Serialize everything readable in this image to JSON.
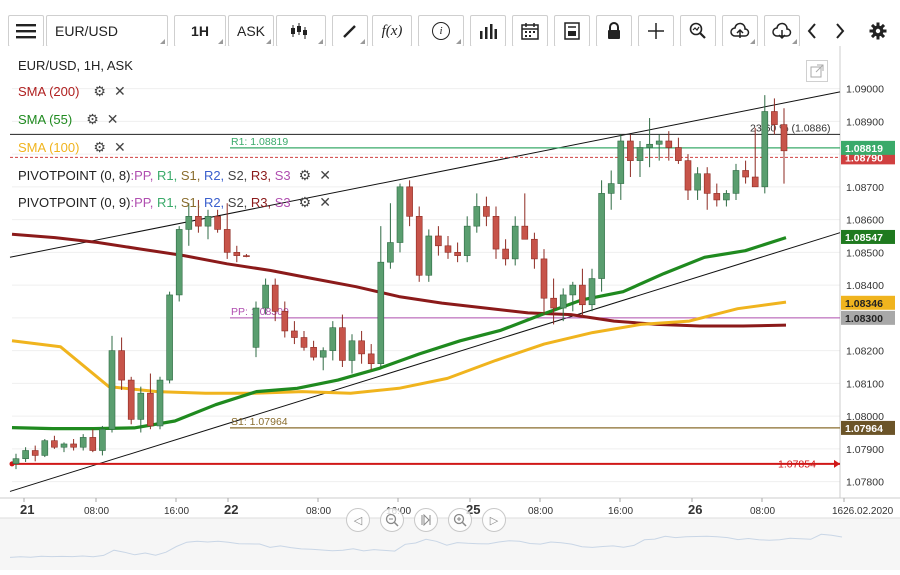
{
  "toolbar": {
    "symbol": "EUR/USD",
    "timeframe": "1H",
    "price_type": "ASK",
    "fx_label": "f(x)",
    "info_label": "i"
  },
  "legend": {
    "title": "EUR/USD, 1H, ASK",
    "sma200": "SMA (200)",
    "sma55": "SMA (55)",
    "sma100": "SMA (100)",
    "pivot1_name": "PIVOTPOINT (0, 8)",
    "pivot2_name": "PIVOTPOINT (0, 9)",
    "pivot_sep": ":",
    "pivot_items": [
      "PP,",
      "R1,",
      "S1,",
      "R2,",
      "S2,",
      "R3,",
      "S3"
    ]
  },
  "colors": {
    "up": "#5a9e6f",
    "down": "#c7544a",
    "sma200": "#8b1a1a",
    "sma55": "#1f8a1f",
    "sma100": "#f0b41e",
    "r1": "#3aaa6a",
    "s1": "#8a6d2e",
    "pp": "#b04fb0",
    "hline": "#d01818"
  },
  "chart_data": {
    "type": "candlestick",
    "title": "EUR/USD, 1H, ASK",
    "ylim": [
      1.0775,
      1.0913
    ],
    "y_ticks": [
      "1.07800",
      "1.07900",
      "1.08000",
      "1.08100",
      "1.08200",
      "1.08300",
      "1.08400",
      "1.08500",
      "1.08600",
      "1.08700",
      "1.08800",
      "1.08900",
      "1.09000"
    ],
    "x_ticks": [
      "21",
      "08:00",
      "16:00",
      "22",
      "08:00",
      "16:00",
      "25",
      "08:00",
      "16:00",
      "26",
      "08:00",
      "1626.02.2020"
    ],
    "ohlc": [
      {
        "o": 1.07855,
        "h": 1.07885,
        "l": 1.07838,
        "c": 1.0787
      },
      {
        "o": 1.0787,
        "h": 1.07905,
        "l": 1.0786,
        "c": 1.07895
      },
      {
        "o": 1.07895,
        "h": 1.0791,
        "l": 1.07862,
        "c": 1.0788
      },
      {
        "o": 1.0788,
        "h": 1.0793,
        "l": 1.07875,
        "c": 1.07925
      },
      {
        "o": 1.07925,
        "h": 1.0794,
        "l": 1.079,
        "c": 1.07905
      },
      {
        "o": 1.07905,
        "h": 1.0792,
        "l": 1.0789,
        "c": 1.07915
      },
      {
        "o": 1.07915,
        "h": 1.0793,
        "l": 1.07895,
        "c": 1.07905
      },
      {
        "o": 1.07905,
        "h": 1.07945,
        "l": 1.07895,
        "c": 1.07935
      },
      {
        "o": 1.07935,
        "h": 1.0796,
        "l": 1.0789,
        "c": 1.07895
      },
      {
        "o": 1.07895,
        "h": 1.0797,
        "l": 1.0788,
        "c": 1.0796
      },
      {
        "o": 1.0796,
        "h": 1.08245,
        "l": 1.0795,
        "c": 1.082
      },
      {
        "o": 1.082,
        "h": 1.0824,
        "l": 1.0808,
        "c": 1.0811
      },
      {
        "o": 1.0811,
        "h": 1.0812,
        "l": 1.07975,
        "c": 1.0799
      },
      {
        "o": 1.0799,
        "h": 1.0809,
        "l": 1.0795,
        "c": 1.0807
      },
      {
        "o": 1.0807,
        "h": 1.0813,
        "l": 1.0796,
        "c": 1.0797
      },
      {
        "o": 1.0797,
        "h": 1.0812,
        "l": 1.0796,
        "c": 1.0811
      },
      {
        "o": 1.0811,
        "h": 1.0838,
        "l": 1.081,
        "c": 1.0837
      },
      {
        "o": 1.0837,
        "h": 1.0858,
        "l": 1.0835,
        "c": 1.0857
      },
      {
        "o": 1.0857,
        "h": 1.0865,
        "l": 1.0852,
        "c": 1.0861
      },
      {
        "o": 1.0861,
        "h": 1.0866,
        "l": 1.0856,
        "c": 1.0858
      },
      {
        "o": 1.0858,
        "h": 1.0863,
        "l": 1.0854,
        "c": 1.0861
      },
      {
        "o": 1.0861,
        "h": 1.0863,
        "l": 1.0856,
        "c": 1.0857
      },
      {
        "o": 1.0857,
        "h": 1.0865,
        "l": 1.0848,
        "c": 1.085
      },
      {
        "o": 1.085,
        "h": 1.0852,
        "l": 1.0847,
        "c": 1.0849
      },
      {
        "o": 1.0849,
        "h": 1.08495,
        "l": 1.08485,
        "c": 1.08487
      },
      {
        "o": 1.0821,
        "h": 1.0835,
        "l": 1.0818,
        "c": 1.0833
      },
      {
        "o": 1.0833,
        "h": 1.0842,
        "l": 1.0831,
        "c": 1.084
      },
      {
        "o": 1.084,
        "h": 1.0842,
        "l": 1.0829,
        "c": 1.0832
      },
      {
        "o": 1.0832,
        "h": 1.0835,
        "l": 1.0824,
        "c": 1.0826
      },
      {
        "o": 1.0826,
        "h": 1.0829,
        "l": 1.0822,
        "c": 1.0824
      },
      {
        "o": 1.0824,
        "h": 1.0826,
        "l": 1.082,
        "c": 1.0821
      },
      {
        "o": 1.0821,
        "h": 1.0823,
        "l": 1.0817,
        "c": 1.0818
      },
      {
        "o": 1.0818,
        "h": 1.0821,
        "l": 1.0814,
        "c": 1.082
      },
      {
        "o": 1.082,
        "h": 1.0829,
        "l": 1.0817,
        "c": 1.0827
      },
      {
        "o": 1.0827,
        "h": 1.0831,
        "l": 1.0815,
        "c": 1.0817
      },
      {
        "o": 1.0817,
        "h": 1.0825,
        "l": 1.0813,
        "c": 1.0823
      },
      {
        "o": 1.0823,
        "h": 1.0826,
        "l": 1.0816,
        "c": 1.0819
      },
      {
        "o": 1.0819,
        "h": 1.0822,
        "l": 1.0814,
        "c": 1.0816
      },
      {
        "o": 1.0816,
        "h": 1.0858,
        "l": 1.0815,
        "c": 1.0847
      },
      {
        "o": 1.0847,
        "h": 1.0865,
        "l": 1.0845,
        "c": 1.0853
      },
      {
        "o": 1.0853,
        "h": 1.0871,
        "l": 1.085,
        "c": 1.087
      },
      {
        "o": 1.087,
        "h": 1.0872,
        "l": 1.0858,
        "c": 1.0861
      },
      {
        "o": 1.0861,
        "h": 1.0864,
        "l": 1.0841,
        "c": 1.0843
      },
      {
        "o": 1.0843,
        "h": 1.0857,
        "l": 1.0841,
        "c": 1.0855
      },
      {
        "o": 1.0855,
        "h": 1.0858,
        "l": 1.0849,
        "c": 1.0852
      },
      {
        "o": 1.0852,
        "h": 1.0855,
        "l": 1.0848,
        "c": 1.085
      },
      {
        "o": 1.085,
        "h": 1.0853,
        "l": 1.0847,
        "c": 1.0849
      },
      {
        "o": 1.0849,
        "h": 1.0861,
        "l": 1.0847,
        "c": 1.0858
      },
      {
        "o": 1.0858,
        "h": 1.0868,
        "l": 1.0856,
        "c": 1.0864
      },
      {
        "o": 1.0864,
        "h": 1.0867,
        "l": 1.0858,
        "c": 1.0861
      },
      {
        "o": 1.0861,
        "h": 1.0864,
        "l": 1.0848,
        "c": 1.0851
      },
      {
        "o": 1.0851,
        "h": 1.0854,
        "l": 1.0846,
        "c": 1.0848
      },
      {
        "o": 1.0848,
        "h": 1.0861,
        "l": 1.0846,
        "c": 1.0858
      },
      {
        "o": 1.0858,
        "h": 1.0868,
        "l": 1.0854,
        "c": 1.0854
      },
      {
        "o": 1.0854,
        "h": 1.0856,
        "l": 1.0845,
        "c": 1.0848
      },
      {
        "o": 1.0848,
        "h": 1.0851,
        "l": 1.0831,
        "c": 1.0836
      },
      {
        "o": 1.0836,
        "h": 1.0842,
        "l": 1.0828,
        "c": 1.0833
      },
      {
        "o": 1.0833,
        "h": 1.0839,
        "l": 1.0829,
        "c": 1.0837
      },
      {
        "o": 1.0837,
        "h": 1.0841,
        "l": 1.0832,
        "c": 1.084
      },
      {
        "o": 1.084,
        "h": 1.0845,
        "l": 1.083,
        "c": 1.0834
      },
      {
        "o": 1.0834,
        "h": 1.0845,
        "l": 1.0832,
        "c": 1.0842
      },
      {
        "o": 1.0842,
        "h": 1.0872,
        "l": 1.0838,
        "c": 1.0868
      },
      {
        "o": 1.0868,
        "h": 1.0875,
        "l": 1.0863,
        "c": 1.0871
      },
      {
        "o": 1.0871,
        "h": 1.0886,
        "l": 1.0866,
        "c": 1.0884
      },
      {
        "o": 1.0884,
        "h": 1.0886,
        "l": 1.0873,
        "c": 1.0878
      },
      {
        "o": 1.0878,
        "h": 1.0884,
        "l": 1.0873,
        "c": 1.0882
      },
      {
        "o": 1.0882,
        "h": 1.0891,
        "l": 1.0876,
        "c": 1.0883
      },
      {
        "o": 1.0883,
        "h": 1.0886,
        "l": 1.0878,
        "c": 1.0884
      },
      {
        "o": 1.0884,
        "h": 1.0887,
        "l": 1.0878,
        "c": 1.0882
      },
      {
        "o": 1.0882,
        "h": 1.0885,
        "l": 1.0877,
        "c": 1.0878
      },
      {
        "o": 1.0878,
        "h": 1.088,
        "l": 1.0866,
        "c": 1.0869
      },
      {
        "o": 1.0869,
        "h": 1.0876,
        "l": 1.0866,
        "c": 1.0874
      },
      {
        "o": 1.0874,
        "h": 1.0876,
        "l": 1.0863,
        "c": 1.0868
      },
      {
        "o": 1.0868,
        "h": 1.0871,
        "l": 1.0864,
        "c": 1.0866
      },
      {
        "o": 1.0866,
        "h": 1.0869,
        "l": 1.0864,
        "c": 1.0868
      },
      {
        "o": 1.0868,
        "h": 1.0877,
        "l": 1.0866,
        "c": 1.0875
      },
      {
        "o": 1.0875,
        "h": 1.0878,
        "l": 1.0871,
        "c": 1.0873
      },
      {
        "o": 1.0873,
        "h": 1.0888,
        "l": 1.087,
        "c": 1.087
      },
      {
        "o": 1.087,
        "h": 1.0898,
        "l": 1.0868,
        "c": 1.0893
      },
      {
        "o": 1.0893,
        "h": 1.0897,
        "l": 1.0886,
        "c": 1.0889
      },
      {
        "o": 1.0889,
        "h": 1.0894,
        "l": 1.0871,
        "c": 1.0881
      }
    ],
    "sma200": [
      1.08555,
      1.08545,
      1.0853,
      1.0851,
      1.0849,
      1.08465,
      1.08445,
      1.0842,
      1.08395,
      1.08365,
      1.08345,
      1.0833,
      1.08315,
      1.0831,
      1.0829,
      1.0828,
      1.08275,
      1.08275,
      1.08278
    ],
    "sma55": [
      1.07965,
      1.07962,
      1.07962,
      1.07964,
      1.07985,
      1.08035,
      1.08075,
      1.08085,
      1.0811,
      1.08145,
      1.0819,
      1.0823,
      1.08262,
      1.0831,
      1.08355,
      1.0838,
      1.08435,
      1.08485,
      1.08505,
      1.08545
    ],
    "sma100": [
      1.0823,
      1.08212,
      1.0809,
      1.08075,
      1.0807,
      1.0807,
      1.08075,
      1.0807,
      1.08085,
      1.08115,
      1.0817,
      1.0822,
      1.08255,
      1.0828,
      1.0829,
      1.08328,
      1.08348
    ],
    "levels": {
      "r1": 1.08819,
      "s1": 1.07964,
      "pp": 1.083,
      "hline": 1.07854,
      "sma200_last": 1.083,
      "sma55_last": 1.08547,
      "sma100_last": 1.08346,
      "price_dash": 1.0879,
      "black_hline": 1.0886
    },
    "level_labels": {
      "r1": "R1: 1.08819",
      "s1": "S1: 1.07964",
      "pp": "PP: 1.08300",
      "hline": "1.07854",
      "black_hline": "23.60 % (1.0886)",
      "r1_badge": "1.08819",
      "s1_badge": "1.07964",
      "pp_badge": "1.08300",
      "sma55_badge": "1.08547",
      "sma100_badge": "1.08346",
      "price_badge": "1.08790"
    }
  }
}
